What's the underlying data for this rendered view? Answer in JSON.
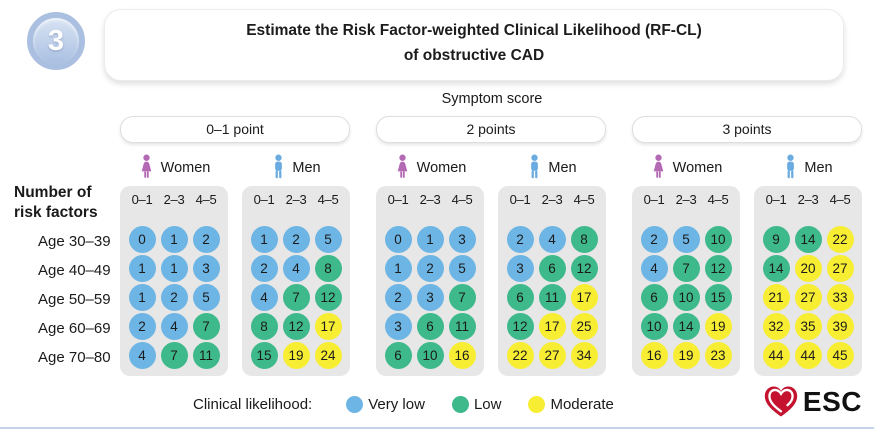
{
  "step_number": "3",
  "title_line1": "Estimate the Risk Factor-weighted Clinical Likelihood (RF-CL)",
  "title_line2": "of obstructive CAD",
  "axis_label_line1": "Number of",
  "axis_label_line2": "risk factors",
  "legend": {
    "label": "Clinical likelihood:",
    "items": [
      {
        "level": "very_low",
        "label": "Very low"
      },
      {
        "level": "low",
        "label": "Low"
      },
      {
        "level": "moderate",
        "label": "Moderate"
      }
    ]
  },
  "logo": {
    "text": "ESC",
    "heart_color": "#c4122f"
  },
  "colors": {
    "very_low": "#6db5e5",
    "low": "#3eb98b",
    "moderate": "#f7ee33",
    "woman_icon": "#b36ab3",
    "man_icon": "#6aabe2",
    "panel_bg": "#e7e7e7",
    "step_ring": "#abc0e1"
  },
  "chart_data": {
    "type": "heatmap",
    "title": "Estimate the Risk Factor-weighted Clinical Likelihood (RF-CL) of obstructive CAD",
    "column_axis_label": "Symptom score",
    "row_axis_label": "Number of risk factors",
    "age_rows": [
      "Age 30–39",
      "Age 40–49",
      "Age 50–59",
      "Age 60–69",
      "Age 70–80"
    ],
    "risk_factor_bins": [
      "0–1",
      "2–3",
      "4–5"
    ],
    "level_codes": {
      "b": "very_low",
      "g": "low",
      "y": "moderate"
    },
    "levels": {
      "very_low": "Very low",
      "low": "Low",
      "moderate": "Moderate"
    },
    "groups": [
      {
        "symptom_score": "0–1 point",
        "panels": [
          {
            "sex": "Women",
            "rows": [
              [
                [
                  0,
                  "b"
                ],
                [
                  1,
                  "b"
                ],
                [
                  2,
                  "b"
                ]
              ],
              [
                [
                  1,
                  "b"
                ],
                [
                  1,
                  "b"
                ],
                [
                  3,
                  "b"
                ]
              ],
              [
                [
                  1,
                  "b"
                ],
                [
                  2,
                  "b"
                ],
                [
                  5,
                  "b"
                ]
              ],
              [
                [
                  2,
                  "b"
                ],
                [
                  4,
                  "b"
                ],
                [
                  7,
                  "g"
                ]
              ],
              [
                [
                  4,
                  "b"
                ],
                [
                  7,
                  "g"
                ],
                [
                  11,
                  "g"
                ]
              ]
            ]
          },
          {
            "sex": "Men",
            "rows": [
              [
                [
                  1,
                  "b"
                ],
                [
                  2,
                  "b"
                ],
                [
                  5,
                  "b"
                ]
              ],
              [
                [
                  2,
                  "b"
                ],
                [
                  4,
                  "b"
                ],
                [
                  8,
                  "g"
                ]
              ],
              [
                [
                  4,
                  "b"
                ],
                [
                  7,
                  "g"
                ],
                [
                  12,
                  "g"
                ]
              ],
              [
                [
                  8,
                  "g"
                ],
                [
                  12,
                  "g"
                ],
                [
                  17,
                  "y"
                ]
              ],
              [
                [
                  15,
                  "g"
                ],
                [
                  19,
                  "y"
                ],
                [
                  24,
                  "y"
                ]
              ]
            ]
          }
        ]
      },
      {
        "symptom_score": "2 points",
        "panels": [
          {
            "sex": "Women",
            "rows": [
              [
                [
                  0,
                  "b"
                ],
                [
                  1,
                  "b"
                ],
                [
                  3,
                  "b"
                ]
              ],
              [
                [
                  1,
                  "b"
                ],
                [
                  2,
                  "b"
                ],
                [
                  5,
                  "b"
                ]
              ],
              [
                [
                  2,
                  "b"
                ],
                [
                  3,
                  "b"
                ],
                [
                  7,
                  "g"
                ]
              ],
              [
                [
                  3,
                  "b"
                ],
                [
                  6,
                  "g"
                ],
                [
                  11,
                  "g"
                ]
              ],
              [
                [
                  6,
                  "g"
                ],
                [
                  10,
                  "g"
                ],
                [
                  16,
                  "y"
                ]
              ]
            ]
          },
          {
            "sex": "Men",
            "rows": [
              [
                [
                  2,
                  "b"
                ],
                [
                  4,
                  "b"
                ],
                [
                  8,
                  "g"
                ]
              ],
              [
                [
                  3,
                  "b"
                ],
                [
                  6,
                  "g"
                ],
                [
                  12,
                  "g"
                ]
              ],
              [
                [
                  6,
                  "g"
                ],
                [
                  11,
                  "g"
                ],
                [
                  17,
                  "y"
                ]
              ],
              [
                [
                  12,
                  "g"
                ],
                [
                  17,
                  "y"
                ],
                [
                  25,
                  "y"
                ]
              ],
              [
                [
                  22,
                  "y"
                ],
                [
                  27,
                  "y"
                ],
                [
                  34,
                  "y"
                ]
              ]
            ]
          }
        ]
      },
      {
        "symptom_score": "3 points",
        "panels": [
          {
            "sex": "Women",
            "rows": [
              [
                [
                  2,
                  "b"
                ],
                [
                  5,
                  "b"
                ],
                [
                  10,
                  "g"
                ]
              ],
              [
                [
                  4,
                  "b"
                ],
                [
                  7,
                  "g"
                ],
                [
                  12,
                  "g"
                ]
              ],
              [
                [
                  6,
                  "g"
                ],
                [
                  10,
                  "g"
                ],
                [
                  15,
                  "g"
                ]
              ],
              [
                [
                  10,
                  "g"
                ],
                [
                  14,
                  "g"
                ],
                [
                  19,
                  "y"
                ]
              ],
              [
                [
                  16,
                  "y"
                ],
                [
                  19,
                  "y"
                ],
                [
                  23,
                  "y"
                ]
              ]
            ]
          },
          {
            "sex": "Men",
            "rows": [
              [
                [
                  9,
                  "g"
                ],
                [
                  14,
                  "g"
                ],
                [
                  22,
                  "y"
                ]
              ],
              [
                [
                  14,
                  "g"
                ],
                [
                  20,
                  "y"
                ],
                [
                  27,
                  "y"
                ]
              ],
              [
                [
                  21,
                  "y"
                ],
                [
                  27,
                  "y"
                ],
                [
                  33,
                  "y"
                ]
              ],
              [
                [
                  32,
                  "y"
                ],
                [
                  35,
                  "y"
                ],
                [
                  39,
                  "y"
                ]
              ],
              [
                [
                  44,
                  "y"
                ],
                [
                  44,
                  "y"
                ],
                [
                  45,
                  "y"
                ]
              ]
            ]
          }
        ]
      }
    ],
    "legend_position": "bottom",
    "grid": false
  }
}
